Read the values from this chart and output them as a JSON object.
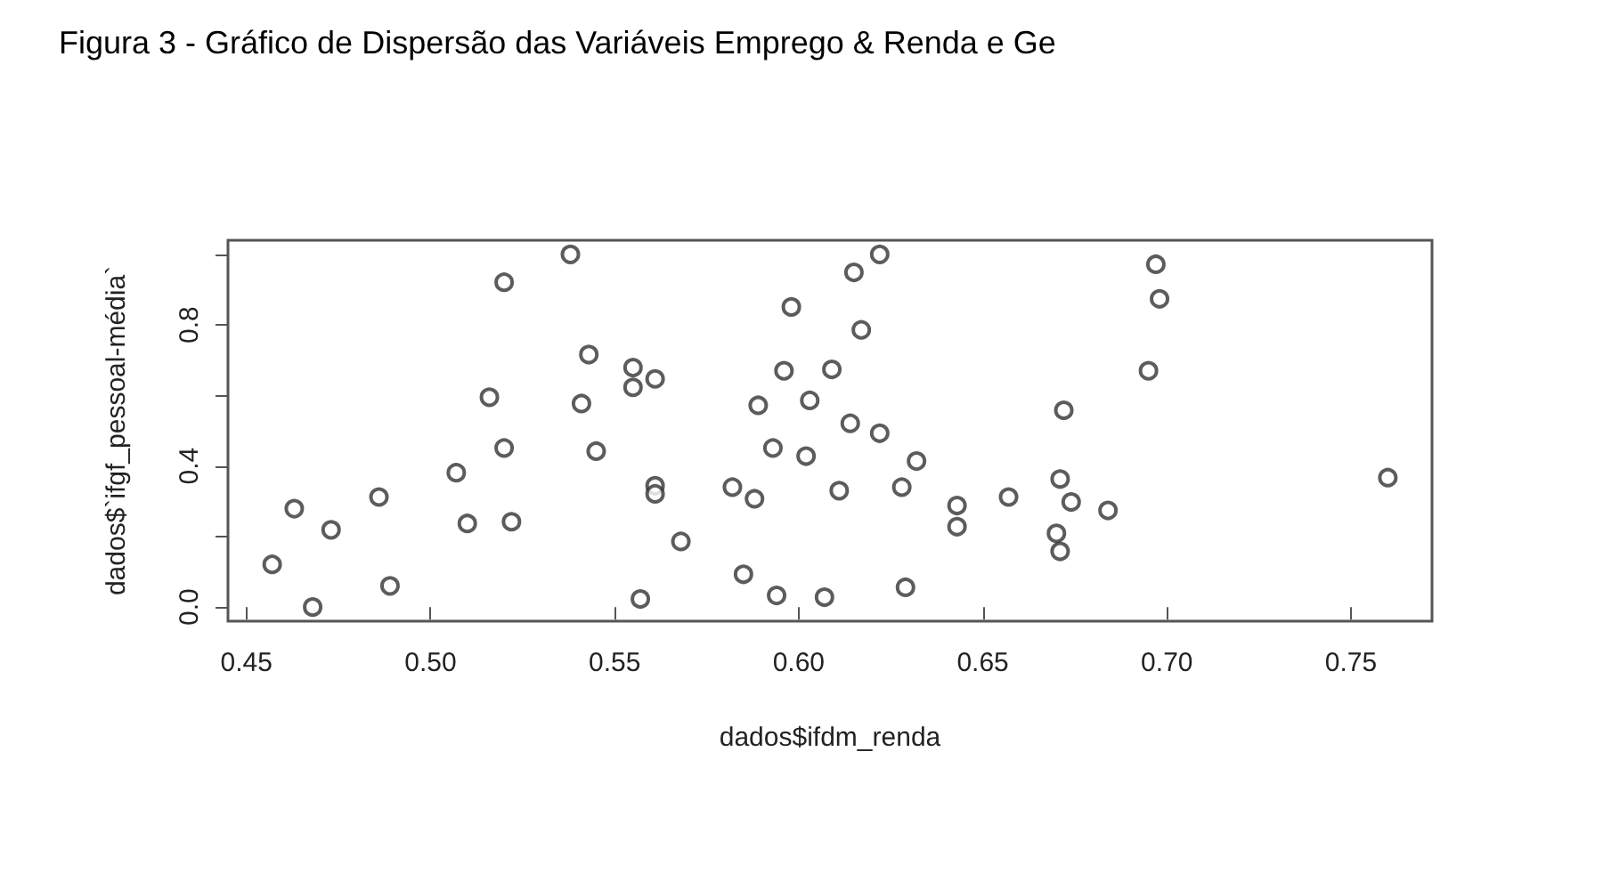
{
  "chart_data": {
    "type": "scatter",
    "title": "Figura 3 - Gráfico de Dispersão das Variáveis Emprego & Renda e Ge",
    "xlabel": "dados$ifdm_renda",
    "ylabel": "dados$`ifgf_pessoal-média`",
    "marker": "circle",
    "grid": false,
    "xlim": [
      0.445,
      0.772
    ],
    "xticks": [
      0.45,
      {
        "value": 0.5,
        "label": "0.50"
      },
      0.55,
      {
        "value": 0.6,
        "label": "0.60"
      },
      0.65,
      {
        "value": 0.7,
        "label": "0.70"
      },
      0.75
    ],
    "ylim": [
      -0.04,
      1.04
    ],
    "yticks": [
      {
        "value": 0,
        "label": "0.0"
      },
      {
        "value": 0.2,
        "label": null
      },
      {
        "value": 0.4,
        "label": "0.4"
      },
      {
        "value": 0.6,
        "label": null
      },
      {
        "value": 0.8,
        "label": "0.8"
      },
      {
        "value": 1,
        "label": null
      }
    ],
    "series": [
      {
        "color": "#333333",
        "x": [
          0.538,
          0.52,
          0.543,
          0.541,
          0.516,
          0.52,
          0.545,
          0.507,
          0.486,
          0.463,
          0.473,
          0.51,
          0.522,
          0.457,
          0.489,
          0.468,
          0.555,
          0.555,
          0.561,
          0.561,
          0.561,
          0.557,
          0.568,
          0.582,
          0.588,
          0.585,
          0.594,
          0.607,
          0.593,
          0.589,
          0.596,
          0.598,
          0.603,
          0.602,
          0.609,
          0.614,
          0.611,
          0.615,
          0.617,
          0.622,
          0.622,
          0.628,
          0.632,
          0.629,
          0.643,
          0.643,
          0.657,
          0.697,
          0.698,
          0.695,
          0.672,
          0.671,
          0.674,
          0.684,
          0.67,
          0.671,
          0.76
        ],
        "values": [
          1.0,
          0.921,
          0.716,
          0.577,
          0.595,
          0.451,
          0.442,
          0.381,
          0.312,
          0.279,
          0.219,
          0.237,
          0.242,
          0.121,
          0.06,
          0.0,
          0.679,
          0.623,
          0.647,
          0.344,
          0.321,
          0.023,
          0.186,
          0.34,
          0.307,
          0.093,
          0.033,
          0.028,
          0.451,
          0.572,
          0.67,
          0.851,
          0.586,
          0.428,
          0.674,
          0.521,
          0.33,
          0.949,
          0.786,
          0.493,
          1.0,
          0.34,
          0.414,
          0.056,
          0.288,
          0.228,
          0.312,
          0.972,
          0.874,
          0.67,
          0.558,
          0.363,
          0.298,
          0.274,
          0.209,
          0.158,
          0.367
        ]
      }
    ]
  }
}
